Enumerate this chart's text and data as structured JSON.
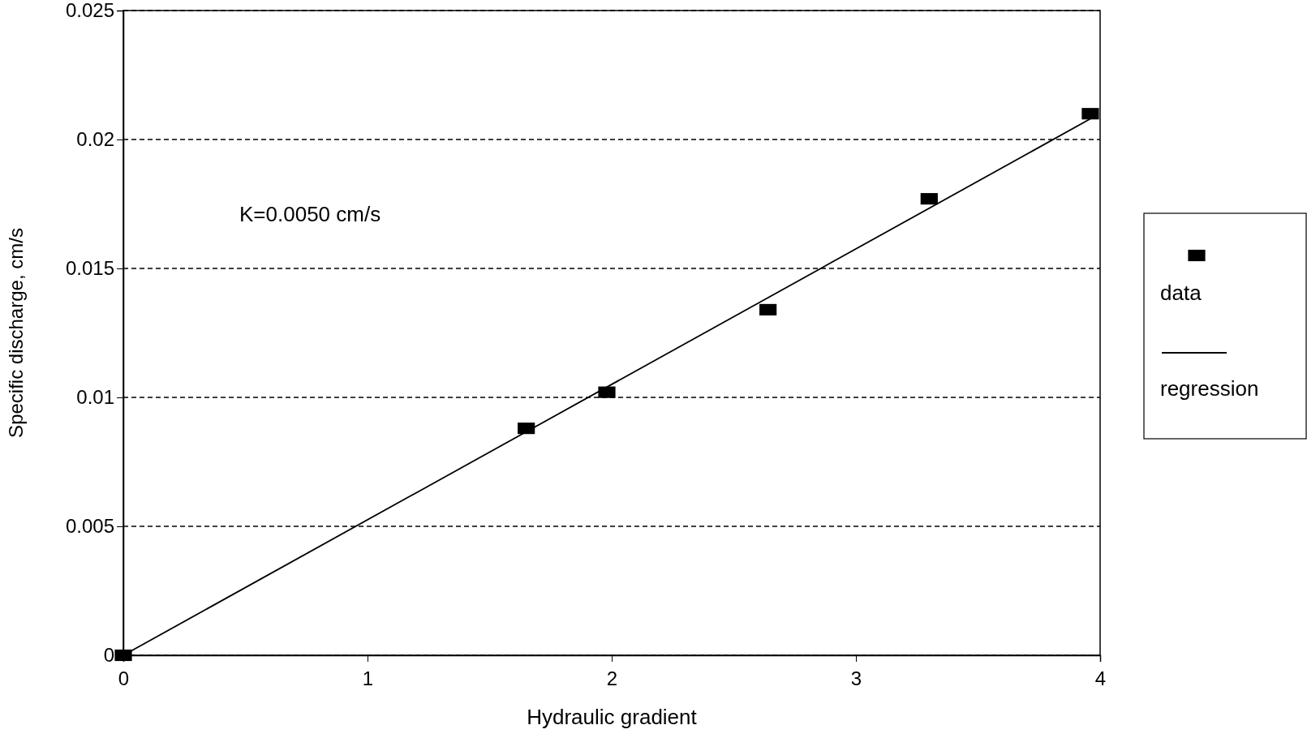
{
  "chart_data": {
    "type": "scatter",
    "xlabel": "Hydraulic gradient",
    "ylabel": "Specific discharge, cm/s",
    "annotations": [
      "K=0.0050 cm/s"
    ],
    "series": [
      {
        "name": "data",
        "color": "#000000",
        "marker": "square",
        "x": [
          0,
          1.65,
          1.98,
          2.64,
          3.3,
          3.96
        ],
        "values": [
          0,
          0.0088,
          0.0102,
          0.0134,
          0.0177,
          0.021
        ]
      },
      {
        "name": "regression",
        "type": "line",
        "color": "#000000",
        "line_style": "solid",
        "x": [
          0,
          3.96
        ],
        "values": [
          0,
          0.0208
        ]
      }
    ],
    "xlim": [
      0,
      4
    ],
    "xticks": [
      0,
      1,
      2,
      3,
      4
    ],
    "ylim": [
      0,
      0.025
    ],
    "yticks": [
      0,
      0.005,
      0.01,
      0.015,
      0.02,
      0.025
    ],
    "grid": "y",
    "legend": "right"
  }
}
